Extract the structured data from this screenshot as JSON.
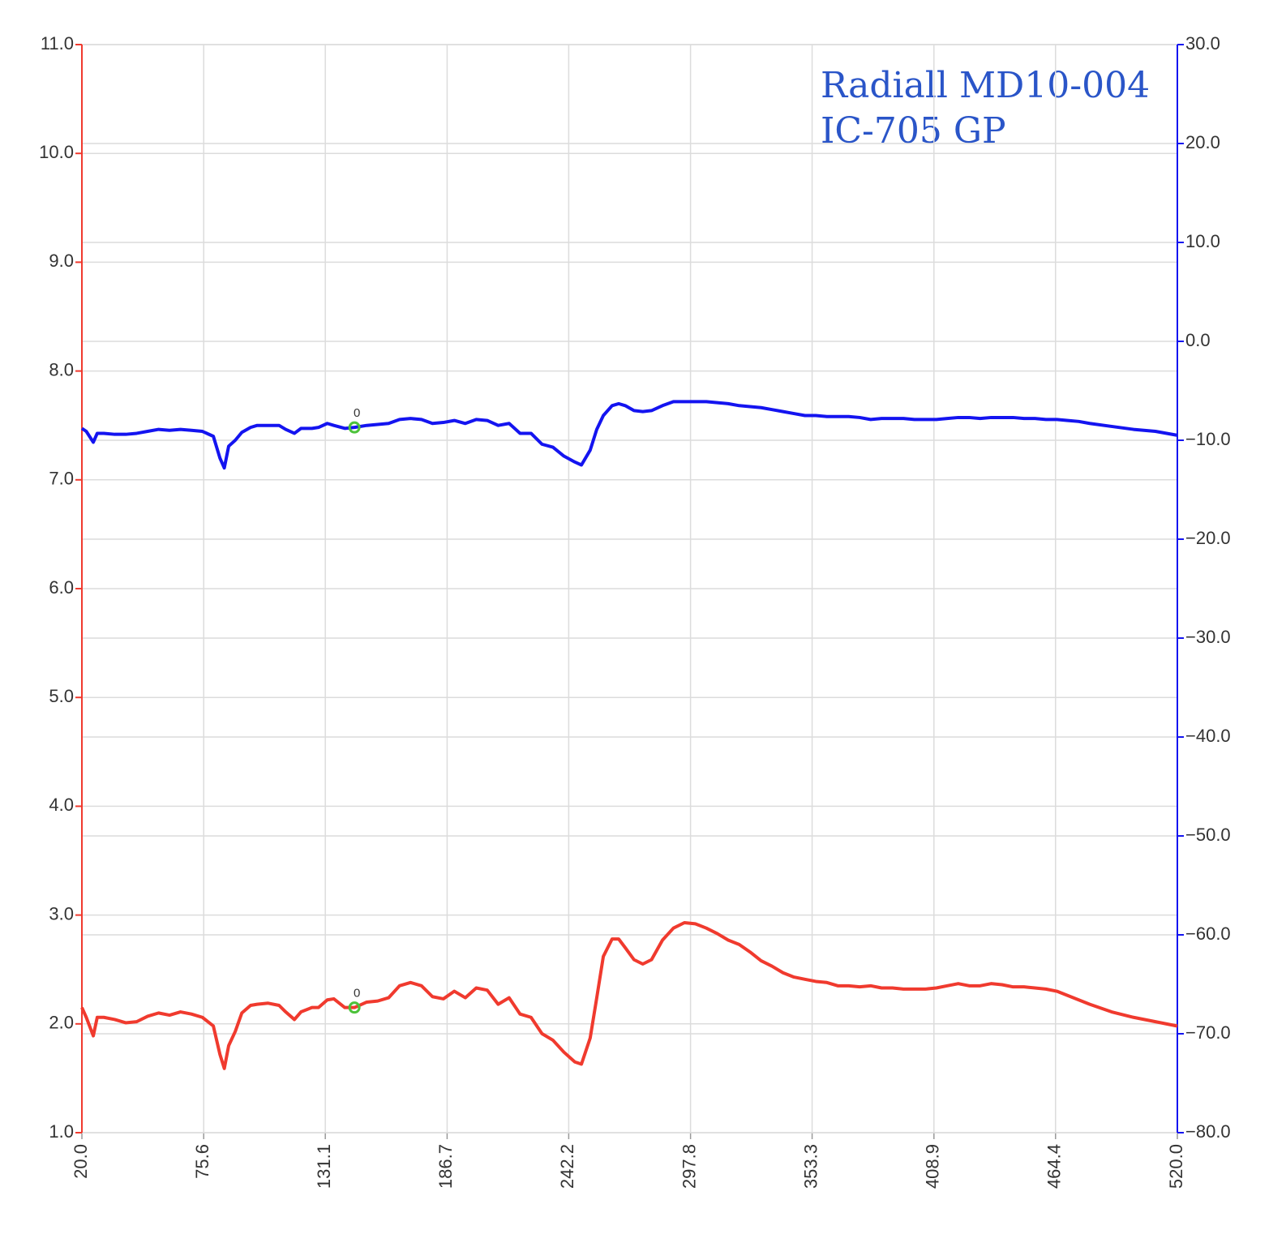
{
  "chart_data": {
    "type": "line",
    "title_lines": [
      "Radiall MD10-004",
      "IC-705 GP"
    ],
    "x": [
      20,
      22,
      25.2,
      27,
      30,
      35,
      40,
      45,
      50,
      55,
      60,
      65,
      70,
      75,
      80,
      83,
      85,
      87,
      90,
      93,
      97,
      100,
      105,
      110,
      113,
      117,
      120,
      125,
      128,
      132,
      135,
      140,
      144.4,
      150,
      155,
      160,
      165,
      170,
      175,
      180,
      185,
      190,
      195,
      200,
      205,
      210,
      215,
      220,
      225,
      230,
      235,
      240,
      245,
      248,
      252,
      255,
      258,
      262,
      265,
      268,
      272,
      276,
      280,
      285,
      290,
      295,
      300,
      305,
      310,
      315,
      320,
      325,
      330,
      335,
      340,
      345,
      350,
      355,
      360,
      365,
      370,
      375,
      380,
      385,
      390,
      395,
      400,
      405,
      410,
      415,
      420,
      425,
      430,
      435,
      440,
      445,
      450,
      455,
      460,
      465,
      470,
      475,
      480,
      490,
      500,
      510,
      520
    ],
    "series": [
      {
        "color": "#f03a2e",
        "axis": "y",
        "values": [
          2.15,
          2.06,
          1.89,
          2.06,
          2.06,
          2.04,
          2.01,
          2.02,
          2.07,
          2.1,
          2.08,
          2.11,
          2.09,
          2.06,
          1.98,
          1.72,
          1.59,
          1.8,
          1.93,
          2.1,
          2.17,
          2.18,
          2.19,
          2.17,
          2.11,
          2.04,
          2.11,
          2.15,
          2.15,
          2.22,
          2.23,
          2.15,
          2.15,
          2.2,
          2.21,
          2.24,
          2.35,
          2.38,
          2.35,
          2.25,
          2.23,
          2.3,
          2.24,
          2.33,
          2.31,
          2.18,
          2.24,
          2.09,
          2.06,
          1.91,
          1.85,
          1.74,
          1.65,
          1.63,
          1.87,
          2.24,
          2.62,
          2.78,
          2.78,
          2.7,
          2.59,
          2.55,
          2.59,
          2.77,
          2.88,
          2.93,
          2.92,
          2.88,
          2.83,
          2.77,
          2.73,
          2.66,
          2.58,
          2.53,
          2.47,
          2.43,
          2.41,
          2.39,
          2.38,
          2.35,
          2.35,
          2.34,
          2.35,
          2.33,
          2.33,
          2.32,
          2.32,
          2.32,
          2.33,
          2.35,
          2.37,
          2.35,
          2.35,
          2.37,
          2.36,
          2.34,
          2.34,
          2.33,
          2.32,
          2.3,
          2.26,
          2.22,
          2.18,
          2.11,
          2.06,
          2.02,
          1.98
        ]
      },
      {
        "color": "#1414f0",
        "axis": "y2",
        "values": [
          -8.8,
          -9.1,
          -10.2,
          -9.3,
          -9.3,
          -9.4,
          -9.4,
          -9.3,
          -9.1,
          -8.9,
          -9.0,
          -8.9,
          -9.0,
          -9.1,
          -9.6,
          -11.8,
          -12.8,
          -10.6,
          -10.0,
          -9.2,
          -8.7,
          -8.5,
          -8.5,
          -8.5,
          -8.9,
          -9.3,
          -8.8,
          -8.8,
          -8.7,
          -8.3,
          -8.5,
          -8.8,
          -8.7,
          -8.5,
          -8.4,
          -8.3,
          -7.9,
          -7.8,
          -7.9,
          -8.3,
          -8.2,
          -8.0,
          -8.3,
          -7.9,
          -8.0,
          -8.5,
          -8.3,
          -9.3,
          -9.3,
          -10.4,
          -10.7,
          -11.6,
          -12.2,
          -12.5,
          -11.0,
          -8.9,
          -7.5,
          -6.5,
          -6.3,
          -6.5,
          -7.0,
          -7.1,
          -7.0,
          -6.5,
          -6.1,
          -6.1,
          -6.1,
          -6.1,
          -6.2,
          -6.3,
          -6.5,
          -6.6,
          -6.7,
          -6.9,
          -7.1,
          -7.3,
          -7.5,
          -7.5,
          -7.6,
          -7.6,
          -7.6,
          -7.7,
          -7.9,
          -7.8,
          -7.8,
          -7.8,
          -7.9,
          -7.9,
          -7.9,
          -7.8,
          -7.7,
          -7.7,
          -7.8,
          -7.7,
          -7.7,
          -7.7,
          -7.8,
          -7.8,
          -7.9,
          -7.9,
          -8.0,
          -8.1,
          -8.3,
          -8.6,
          -8.9,
          -9.1,
          -9.5
        ]
      }
    ],
    "markers": [
      {
        "x": 144.4,
        "y": 2.15,
        "axis": "y",
        "label": "0",
        "color": "#4cc23a"
      },
      {
        "x": 144.4,
        "y": -8.7,
        "axis": "y2",
        "label": "0",
        "color": "#4cc23a"
      }
    ],
    "xlim": [
      20,
      520
    ],
    "xticks": [
      {
        "value": 20,
        "label": "20.0"
      },
      75.6,
      131.1,
      186.7,
      242.2,
      297.8,
      353.3,
      408.9,
      464.4,
      {
        "value": 520,
        "label": "520.0"
      }
    ],
    "ylim": [
      1,
      11
    ],
    "yticks": [
      {
        "value": 1,
        "label": "1.0"
      },
      {
        "value": 2,
        "label": "2.0"
      },
      {
        "value": 3,
        "label": "3.0"
      },
      {
        "value": 4,
        "label": "4.0"
      },
      {
        "value": 5,
        "label": "5.0"
      },
      {
        "value": 6,
        "label": "6.0"
      },
      {
        "value": 7,
        "label": "7.0"
      },
      {
        "value": 8,
        "label": "8.0"
      },
      {
        "value": 9,
        "label": "9.0"
      },
      {
        "value": 10,
        "label": "10.0"
      },
      {
        "value": 11,
        "label": "11.0"
      }
    ],
    "y2lim": [
      -80,
      30
    ],
    "y2ticks": [
      {
        "value": -80,
        "label": "−80.0"
      },
      {
        "value": -70,
        "label": "−70.0"
      },
      {
        "value": -60,
        "label": "−60.0"
      },
      {
        "value": -50,
        "label": "−50.0"
      },
      {
        "value": -40,
        "label": "−40.0"
      },
      {
        "value": -30,
        "label": "−30.0"
      },
      {
        "value": -20,
        "label": "−20.0"
      },
      {
        "value": -10,
        "label": "−10.0"
      },
      {
        "value": 0,
        "label": "0.0"
      },
      {
        "value": 10,
        "label": "10.0"
      },
      {
        "value": 20,
        "label": "20.0"
      },
      {
        "value": 30,
        "label": "30.0"
      }
    ],
    "y_axis_color": "#f03a2e",
    "y2_axis_color": "#1414f0",
    "grid": true
  }
}
